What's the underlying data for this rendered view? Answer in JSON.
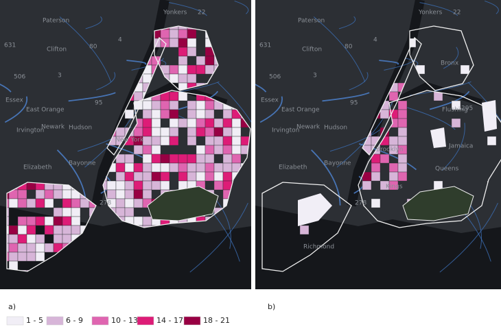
{
  "panels": [
    {
      "label": "a)",
      "places": [
        "Paterson",
        "Yonkers",
        "22",
        "631",
        "Clifton",
        "80",
        "4",
        "3",
        "506",
        "Essex",
        "East Orange",
        "Newark",
        "Hudson",
        "Irvington",
        "95",
        "Elizabeth",
        "Bayonne",
        "New York",
        "278"
      ]
    },
    {
      "label": "b)",
      "places": [
        "Paterson",
        "Yonkers",
        "22",
        "631",
        "Clifton",
        "80",
        "4",
        "3",
        "506",
        "Essex",
        "East Orange",
        "Newark",
        "Hudson",
        "Irvington",
        "95",
        "Elizabeth",
        "Bayonne",
        "Bronx",
        "Flushing",
        "295",
        "Jamaica",
        "Brooklyn",
        "Queens",
        "Kings",
        "278",
        "Richmond"
      ]
    }
  ],
  "legend": [
    {
      "label": "1 - 5",
      "color": "#f1eef6"
    },
    {
      "label": "6 - 9",
      "color": "#d7b5d8"
    },
    {
      "label": "10 - 13",
      "color": "#df65b0"
    },
    {
      "label": "14 - 17",
      "color": "#dd1c77"
    },
    {
      "label": "18 - 21",
      "color": "#980043"
    }
  ]
}
